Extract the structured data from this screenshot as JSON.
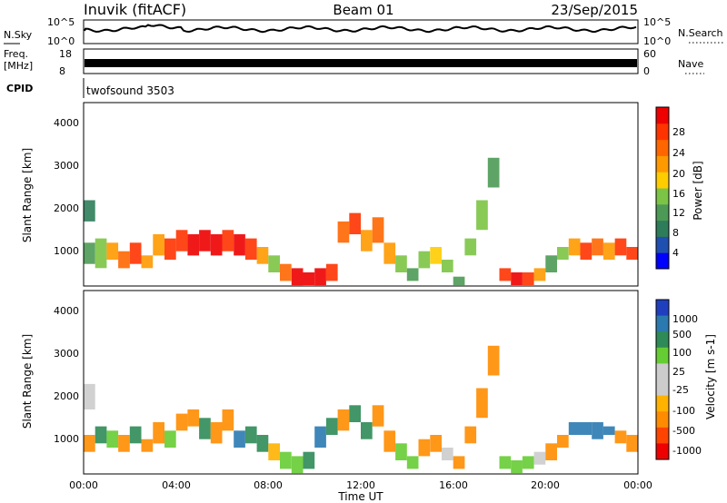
{
  "header": {
    "station": "Inuvik (fitACF)",
    "beam": "Beam 01",
    "date": "23/Sep/2015"
  },
  "status_panels": {
    "nsky_label": "N.Sky",
    "nsky_ticks": [
      "10^5",
      "10^0"
    ],
    "nsearch_label": "N.Search",
    "nsearch_ticks": [
      "10^5",
      "10^0"
    ],
    "freq_label_1": "Freq.",
    "freq_label_2": "[MHz]",
    "freq_ticks": [
      "18",
      "8"
    ],
    "nave_label": "Nave",
    "nave_ticks": [
      "60",
      "0"
    ],
    "cpid_label": "CPID",
    "cpid_value": "twofsound 3503"
  },
  "colors": {
    "power_scale": [
      "#0000ff",
      "#1f4fb0",
      "#2e7d5a",
      "#4c9a55",
      "#7cc445",
      "#ffcc00",
      "#ff9900",
      "#ff6600",
      "#ff3300",
      "#ee0000"
    ],
    "velocity_scale": [
      "#ee0000",
      "#ff4400",
      "#ff8c00",
      "#ffb300",
      "#cccccc",
      "#cccccc",
      "#66cc33",
      "#2e8b57",
      "#2a7ab0",
      "#1f3fbf"
    ]
  },
  "chart_data": [
    {
      "type": "heatmap",
      "name": "power",
      "ylabel": "Slant Range [km]",
      "colorbar_label": "Power [dB]",
      "colorbar_ticks": [
        "28",
        "24",
        "20",
        "16",
        "12",
        "8",
        "4"
      ],
      "y_ticks": [
        "4000",
        "3000",
        "2000",
        "1000"
      ],
      "ylim": [
        180,
        4500
      ],
      "xlim": [
        0,
        24
      ],
      "clim": [
        0,
        30
      ],
      "cells": [
        [
          0.0,
          700,
          1200,
          10
        ],
        [
          0.0,
          1700,
          2200,
          8
        ],
        [
          0.5,
          600,
          1300,
          14
        ],
        [
          1.0,
          800,
          1200,
          20
        ],
        [
          1.5,
          600,
          1000,
          22
        ],
        [
          2.0,
          700,
          1200,
          24
        ],
        [
          2.5,
          600,
          900,
          20
        ],
        [
          3.0,
          900,
          1400,
          18
        ],
        [
          3.5,
          800,
          1300,
          24
        ],
        [
          4.0,
          1000,
          1500,
          26
        ],
        [
          4.5,
          900,
          1400,
          28
        ],
        [
          5.0,
          1000,
          1500,
          28
        ],
        [
          5.5,
          900,
          1400,
          27
        ],
        [
          6.0,
          1000,
          1500,
          26
        ],
        [
          6.5,
          900,
          1400,
          28
        ],
        [
          7.0,
          800,
          1300,
          24
        ],
        [
          7.5,
          700,
          1100,
          18
        ],
        [
          8.0,
          500,
          900,
          14
        ],
        [
          8.5,
          300,
          700,
          22
        ],
        [
          9.0,
          200,
          600,
          28
        ],
        [
          9.5,
          200,
          500,
          30
        ],
        [
          10.0,
          200,
          600,
          28
        ],
        [
          10.5,
          300,
          700,
          26
        ],
        [
          11.0,
          1200,
          1700,
          22
        ],
        [
          11.5,
          1400,
          1900,
          24
        ],
        [
          12.0,
          1000,
          1500,
          20
        ],
        [
          12.5,
          1200,
          1800,
          22
        ],
        [
          13.0,
          700,
          1200,
          18
        ],
        [
          13.5,
          500,
          900,
          12
        ],
        [
          14.0,
          300,
          600,
          10
        ],
        [
          14.5,
          600,
          1000,
          14
        ],
        [
          15.0,
          700,
          1100,
          16
        ],
        [
          15.5,
          500,
          800,
          12
        ],
        [
          16.0,
          200,
          400,
          10
        ],
        [
          16.5,
          900,
          1300,
          14
        ],
        [
          17.0,
          1500,
          2200,
          12
        ],
        [
          17.5,
          2500,
          3200,
          10
        ],
        [
          18.0,
          300,
          600,
          24
        ],
        [
          18.5,
          200,
          500,
          28
        ],
        [
          19.0,
          200,
          500,
          26
        ],
        [
          19.5,
          300,
          600,
          20
        ],
        [
          20.0,
          500,
          900,
          10
        ],
        [
          20.5,
          800,
          1100,
          12
        ],
        [
          21.0,
          900,
          1300,
          20
        ],
        [
          21.5,
          800,
          1200,
          24
        ],
        [
          22.0,
          900,
          1300,
          22
        ],
        [
          22.5,
          800,
          1200,
          20
        ],
        [
          23.0,
          900,
          1300,
          24
        ],
        [
          23.5,
          800,
          1100,
          26
        ]
      ]
    },
    {
      "type": "heatmap",
      "name": "velocity",
      "ylabel": "Slant Range [km]",
      "xlabel": "Time UT",
      "colorbar_label": "Velocity [m s-1]",
      "colorbar_ticks": [
        "1000",
        "500",
        "100",
        "25",
        "-25",
        "-100",
        "-500",
        "-1000"
      ],
      "y_ticks": [
        "4000",
        "3000",
        "2000",
        "1000"
      ],
      "x_ticks": [
        "00:00",
        "04:00",
        "08:00",
        "12:00",
        "16:00",
        "20:00",
        "00:00"
      ],
      "ylim": [
        180,
        4500
      ],
      "xlim": [
        0,
        24
      ],
      "cells": [
        [
          0.0,
          1700,
          2300,
          10
        ],
        [
          0.0,
          700,
          1100,
          -150
        ],
        [
          0.5,
          900,
          1300,
          120
        ],
        [
          1.0,
          800,
          1200,
          80
        ],
        [
          1.5,
          700,
          1100,
          -200
        ],
        [
          2.0,
          900,
          1300,
          150
        ],
        [
          2.5,
          700,
          1000,
          -120
        ],
        [
          3.0,
          900,
          1400,
          -300
        ],
        [
          3.5,
          800,
          1200,
          100
        ],
        [
          4.0,
          1200,
          1600,
          -200
        ],
        [
          4.5,
          1300,
          1700,
          -150
        ],
        [
          5.0,
          1000,
          1500,
          200
        ],
        [
          5.5,
          900,
          1400,
          -100
        ],
        [
          6.0,
          1200,
          1700,
          -180
        ],
        [
          6.5,
          800,
          1200,
          600
        ],
        [
          7.0,
          900,
          1300,
          300
        ],
        [
          7.5,
          700,
          1100,
          150
        ],
        [
          8.0,
          500,
          900,
          -50
        ],
        [
          8.5,
          300,
          700,
          100
        ],
        [
          9.0,
          200,
          600,
          80
        ],
        [
          9.5,
          300,
          700,
          400
        ],
        [
          10.0,
          800,
          1300,
          700
        ],
        [
          10.5,
          1100,
          1500,
          500
        ],
        [
          11.0,
          1200,
          1700,
          -150
        ],
        [
          11.5,
          1400,
          1800,
          200
        ],
        [
          12.0,
          1000,
          1400,
          150
        ],
        [
          12.5,
          1300,
          1800,
          -250
        ],
        [
          13.0,
          700,
          1200,
          -300
        ],
        [
          13.5,
          500,
          900,
          80
        ],
        [
          14.0,
          300,
          600,
          60
        ],
        [
          14.5,
          600,
          1000,
          -200
        ],
        [
          15.0,
          700,
          1100,
          -180
        ],
        [
          15.5,
          500,
          800,
          0
        ],
        [
          16.0,
          300,
          600,
          -300
        ],
        [
          16.5,
          900,
          1300,
          -250
        ],
        [
          17.0,
          1500,
          2200,
          -220
        ],
        [
          17.5,
          2500,
          3200,
          -150
        ],
        [
          18.0,
          300,
          600,
          40
        ],
        [
          18.5,
          200,
          500,
          60
        ],
        [
          19.0,
          300,
          600,
          30
        ],
        [
          19.5,
          400,
          700,
          20
        ],
        [
          20.0,
          500,
          900,
          -100
        ],
        [
          20.5,
          800,
          1100,
          -150
        ],
        [
          21.0,
          1100,
          1400,
          700
        ],
        [
          21.5,
          1100,
          1400,
          900
        ],
        [
          22.0,
          1000,
          1400,
          800
        ],
        [
          22.5,
          1100,
          1300,
          600
        ],
        [
          23.0,
          900,
          1200,
          -200
        ],
        [
          23.5,
          700,
          1100,
          -300
        ]
      ]
    }
  ]
}
